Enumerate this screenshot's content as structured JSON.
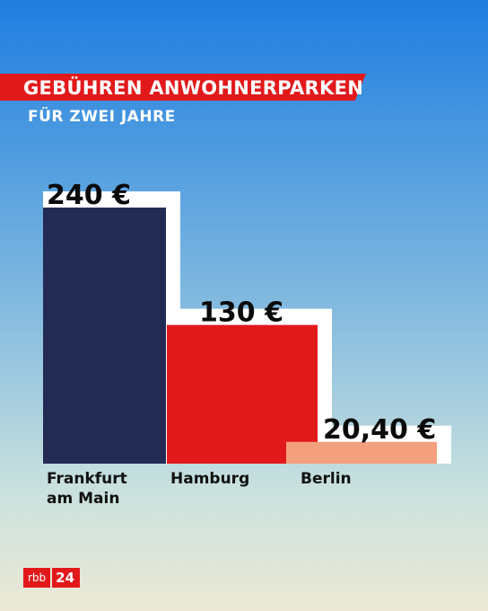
{
  "header": {
    "title": "GEBÜHREN ANWOHNERPARKEN",
    "subtitle": "FÜR ZWEI JAHRE"
  },
  "chart_data": {
    "type": "bar",
    "categories": [
      "Frankfurt am Main",
      "Hamburg",
      "Berlin"
    ],
    "category_lines": [
      [
        "Frankfurt",
        "am Main"
      ],
      [
        "Hamburg"
      ],
      [
        "Berlin"
      ]
    ],
    "values": [
      240,
      130,
      20.4
    ],
    "value_labels": [
      "240 €",
      "130 €",
      "20,40 €"
    ],
    "colors": [
      "#232b55",
      "#e2191b",
      "#f4a07e"
    ],
    "ylim": [
      0,
      240
    ],
    "grid": false,
    "legend": "none"
  },
  "brand": {
    "logo_text": "rbb",
    "logo_number": "24",
    "color": "#e2191b"
  }
}
